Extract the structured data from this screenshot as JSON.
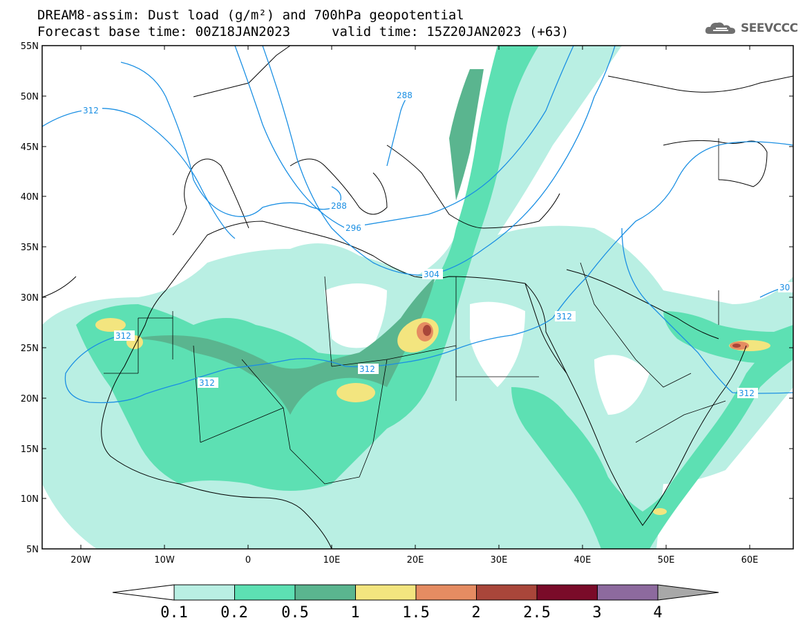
{
  "header": {
    "title_line1": "DREAM8-assim: Dust load (g/m²) and 700hPa geopotential",
    "title_line2": "Forecast base time: 00Z18JAN2023",
    "valid_time": "valid time: 15Z20JAN2023 (+63)",
    "logo_text": "SEEVCCC",
    "logo_icon": "cloud-icon"
  },
  "axes": {
    "lat_labels": [
      "55N",
      "50N",
      "45N",
      "40N",
      "35N",
      "30N",
      "25N",
      "20N",
      "15N",
      "10N",
      "5N"
    ],
    "lon_labels": [
      "20W",
      "10W",
      "0",
      "10E",
      "20E",
      "30E",
      "40E",
      "50E",
      "60E"
    ]
  },
  "contours": {
    "labels": [
      "312",
      "288",
      "288",
      "296",
      "304",
      "312",
      "312",
      "312",
      "312",
      "312",
      "30"
    ],
    "color": "#1a8fe3"
  },
  "colorbar": {
    "ticks": [
      "0.1",
      "0.2",
      "0.5",
      "1",
      "1.5",
      "2",
      "2.5",
      "3",
      "4"
    ],
    "colors": [
      "#b9efe3",
      "#5de0b3",
      "#5ab58f",
      "#f3e57f",
      "#e58c62",
      "#a9463a",
      "#7a0b29",
      "#8d6a9e",
      "#a8a8a8"
    ],
    "under_color": "#ffffff"
  }
}
